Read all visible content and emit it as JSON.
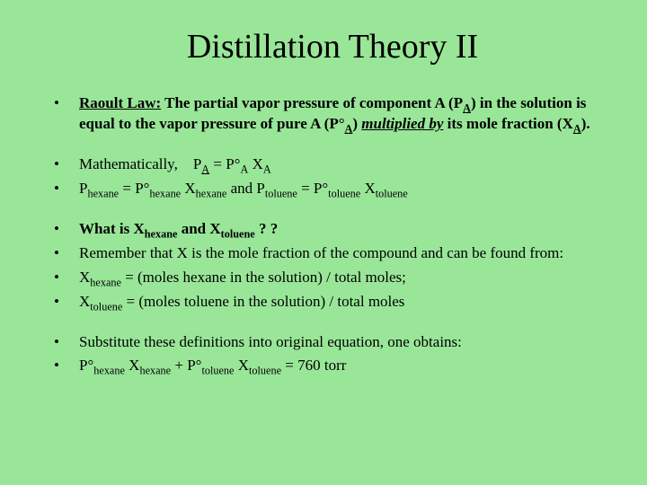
{
  "background_color": "#99e699",
  "text_color": "#000000",
  "title": "Distillation Theory II",
  "title_fontsize": 38,
  "body_fontsize": 17,
  "bullets": {
    "b0_html": "<b><span class='u'>Raoult Law:</span>  The partial vapor pressure of component A (P<span class='sub'><span class='u'>A</span></span>) in the solution is equal to the vapor pressure of pure A (P°<span class='sub'><span class='u'>A</span></span>)  <span class='bi'>multiplied by</span> its mole fraction (X<span class='sub'><span class='u'>A</span></span>).</b>",
    "b1_html": "Mathematically, &nbsp;&nbsp;&nbsp;P<span class='sub'><span class='u'>A</span></span> =  P°<span class='sub'>A</span>  X<span class='sub'>A</span>",
    "b2_html": "P<span class='sub'>hexane</span> =  P°<span class='sub'>hexane</span> X<span class='sub'>hexane</span> and  P<span class='sub'>toluene</span> =  P°<span class='sub'>toluene</span> X<span class='sub'>toluene</span>",
    "b3_html": "<b>What is X<span class='sub'>hexane</span> and X<span class='sub'>toluene</span> ? ?</b>",
    "b4_html": "Remember that X is the mole fraction of the compound and can be found from:",
    "b5_html": "X<span class='sub'>hexane</span> =  (moles hexane in the solution) / total moles;",
    "b6_html": "X<span class='sub'>toluene</span> =  (moles toluene in the solution) / total moles",
    "b7_html": "Substitute these definitions into original equation, one obtains:",
    "b8_html": "P°<span class='sub'>hexane</span> X<span class='sub'>hexane</span> + P°<span class='sub'>toluene</span> X<span class='sub'>toluene</span> = 760  torr"
  }
}
